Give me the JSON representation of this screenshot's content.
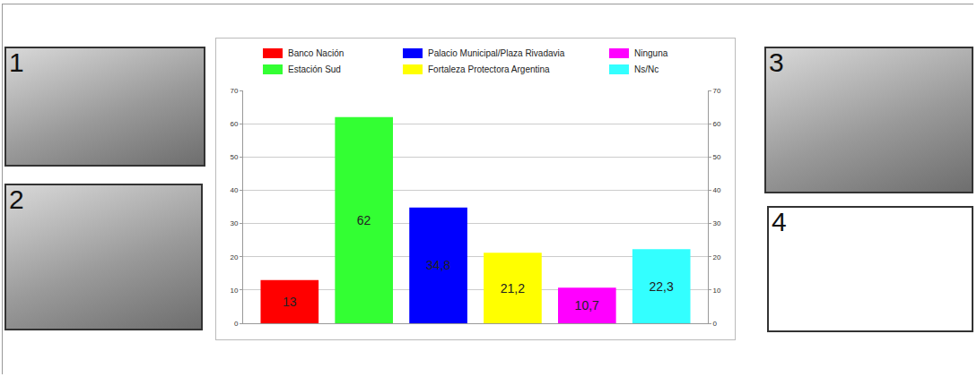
{
  "chart_data": {
    "type": "bar",
    "categories": [
      null
    ],
    "series": [
      {
        "name": "Banco Nación",
        "color": "#ff0000",
        "values": [
          13
        ],
        "value_labels": [
          "13"
        ]
      },
      {
        "name": "Estación Sud",
        "color": "#33ff33",
        "values": [
          62
        ],
        "value_labels": [
          "62"
        ]
      },
      {
        "name": "Palacio Municipal/Plaza Rivadavia",
        "color": "#0000ff",
        "values": [
          34.8
        ],
        "value_labels": [
          "34,8"
        ]
      },
      {
        "name": "Fortaleza Protectora Argentina",
        "color": "#ffff00",
        "values": [
          21.2
        ],
        "value_labels": [
          "21,2"
        ]
      },
      {
        "name": "Ninguna",
        "color": "#ff00ff",
        "values": [
          10.7
        ],
        "value_labels": [
          "10,7"
        ]
      },
      {
        "name": "Ns/Nc",
        "color": "#33ffff",
        "values": [
          22.3
        ],
        "value_labels": [
          "22,3"
        ]
      }
    ],
    "ylim": [
      0,
      70
    ],
    "yticks": [
      0,
      10,
      20,
      30,
      40,
      50,
      60,
      70
    ],
    "y2lim": [
      0,
      70
    ],
    "y2ticks": [
      0,
      10,
      20,
      30,
      40,
      50,
      60,
      70
    ],
    "grid": true,
    "data_labels": true,
    "tick_labels": "y",
    "legend": "top"
  },
  "panels": [
    {
      "label": "1"
    },
    {
      "label": "2"
    },
    {
      "label": "3"
    },
    {
      "label": "4"
    }
  ]
}
